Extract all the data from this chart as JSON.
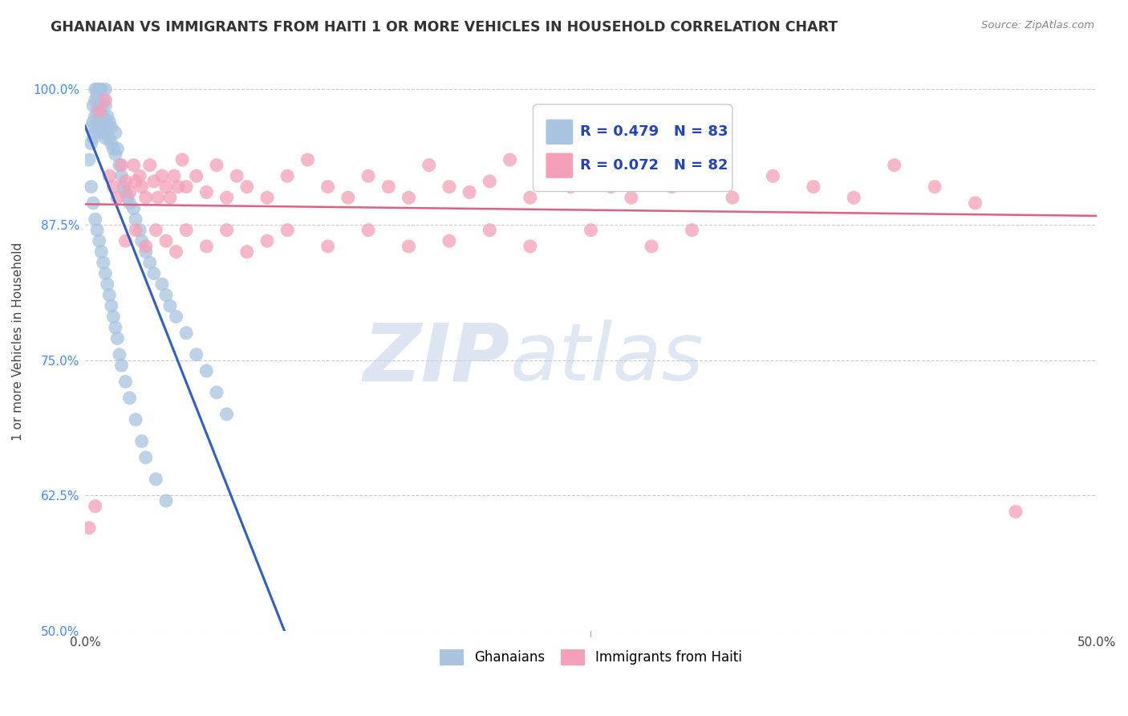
{
  "title": "GHANAIAN VS IMMIGRANTS FROM HAITI 1 OR MORE VEHICLES IN HOUSEHOLD CORRELATION CHART",
  "source": "Source: ZipAtlas.com",
  "ylabel": "1 or more Vehicles in Household",
  "xlim": [
    0.0,
    0.5
  ],
  "ylim": [
    0.5,
    1.035
  ],
  "xticks": [
    0.0,
    0.1,
    0.2,
    0.3,
    0.4,
    0.5
  ],
  "xticklabels": [
    "0.0%",
    "",
    "",
    "",
    "",
    "50.0%"
  ],
  "yticks": [
    0.5,
    0.625,
    0.75,
    0.875,
    1.0
  ],
  "yticklabels": [
    "50.0%",
    "62.5%",
    "75.0%",
    "87.5%",
    "100.0%"
  ],
  "legend_labels": [
    "Ghanaians",
    "Immigrants from Haiti"
  ],
  "R_blue": 0.479,
  "N_blue": 83,
  "R_pink": 0.072,
  "N_pink": 82,
  "color_blue": "#a8c4e0",
  "color_pink": "#f4a0b8",
  "line_blue": "#3060c0",
  "line_pink": "#e06080",
  "watermark_zip": "ZIP",
  "watermark_atlas": "atlas",
  "background_color": "#ffffff",
  "grid_color": "#c8c8c8",
  "blue_x": [
    0.002,
    0.003,
    0.003,
    0.004,
    0.004,
    0.004,
    0.005,
    0.005,
    0.005,
    0.005,
    0.006,
    0.006,
    0.006,
    0.006,
    0.007,
    0.007,
    0.007,
    0.008,
    0.008,
    0.008,
    0.008,
    0.009,
    0.009,
    0.009,
    0.01,
    0.01,
    0.01,
    0.01,
    0.011,
    0.011,
    0.012,
    0.012,
    0.013,
    0.013,
    0.014,
    0.015,
    0.015,
    0.016,
    0.017,
    0.018,
    0.019,
    0.02,
    0.021,
    0.022,
    0.024,
    0.025,
    0.027,
    0.028,
    0.03,
    0.032,
    0.034,
    0.038,
    0.04,
    0.042,
    0.045,
    0.05,
    0.055,
    0.06,
    0.065,
    0.07,
    0.003,
    0.004,
    0.005,
    0.006,
    0.007,
    0.008,
    0.009,
    0.01,
    0.011,
    0.012,
    0.013,
    0.014,
    0.015,
    0.016,
    0.017,
    0.018,
    0.02,
    0.022,
    0.025,
    0.028,
    0.03,
    0.035,
    0.04
  ],
  "blue_y": [
    0.935,
    0.95,
    0.965,
    0.955,
    0.97,
    0.985,
    0.96,
    0.975,
    0.99,
    1.0,
    0.965,
    0.98,
    0.995,
    1.0,
    0.97,
    0.985,
    1.0,
    0.965,
    0.975,
    0.985,
    1.0,
    0.96,
    0.975,
    0.99,
    0.955,
    0.97,
    0.985,
    1.0,
    0.965,
    0.975,
    0.955,
    0.97,
    0.95,
    0.965,
    0.945,
    0.94,
    0.96,
    0.945,
    0.93,
    0.92,
    0.91,
    0.905,
    0.9,
    0.895,
    0.89,
    0.88,
    0.87,
    0.86,
    0.85,
    0.84,
    0.83,
    0.82,
    0.81,
    0.8,
    0.79,
    0.775,
    0.755,
    0.74,
    0.72,
    0.7,
    0.91,
    0.895,
    0.88,
    0.87,
    0.86,
    0.85,
    0.84,
    0.83,
    0.82,
    0.81,
    0.8,
    0.79,
    0.78,
    0.77,
    0.755,
    0.745,
    0.73,
    0.715,
    0.695,
    0.675,
    0.66,
    0.64,
    0.62
  ],
  "pink_x": [
    0.002,
    0.005,
    0.007,
    0.01,
    0.012,
    0.014,
    0.016,
    0.018,
    0.02,
    0.022,
    0.024,
    0.025,
    0.027,
    0.028,
    0.03,
    0.032,
    0.034,
    0.036,
    0.038,
    0.04,
    0.042,
    0.044,
    0.046,
    0.048,
    0.05,
    0.055,
    0.06,
    0.065,
    0.07,
    0.075,
    0.08,
    0.09,
    0.1,
    0.11,
    0.12,
    0.13,
    0.14,
    0.15,
    0.16,
    0.17,
    0.18,
    0.19,
    0.2,
    0.21,
    0.22,
    0.23,
    0.24,
    0.25,
    0.26,
    0.27,
    0.28,
    0.29,
    0.3,
    0.32,
    0.34,
    0.36,
    0.38,
    0.4,
    0.42,
    0.44,
    0.02,
    0.025,
    0.03,
    0.035,
    0.04,
    0.045,
    0.05,
    0.06,
    0.07,
    0.08,
    0.09,
    0.1,
    0.12,
    0.14,
    0.16,
    0.18,
    0.2,
    0.22,
    0.25,
    0.28,
    0.3,
    0.46
  ],
  "pink_y": [
    0.595,
    0.615,
    0.98,
    0.99,
    0.92,
    0.91,
    0.9,
    0.93,
    0.915,
    0.905,
    0.93,
    0.915,
    0.92,
    0.91,
    0.9,
    0.93,
    0.915,
    0.9,
    0.92,
    0.91,
    0.9,
    0.92,
    0.91,
    0.935,
    0.91,
    0.92,
    0.905,
    0.93,
    0.9,
    0.92,
    0.91,
    0.9,
    0.92,
    0.935,
    0.91,
    0.9,
    0.92,
    0.91,
    0.9,
    0.93,
    0.91,
    0.905,
    0.915,
    0.935,
    0.9,
    0.92,
    0.91,
    0.93,
    0.91,
    0.9,
    0.92,
    0.91,
    0.93,
    0.9,
    0.92,
    0.91,
    0.9,
    0.93,
    0.91,
    0.895,
    0.86,
    0.87,
    0.855,
    0.87,
    0.86,
    0.85,
    0.87,
    0.855,
    0.87,
    0.85,
    0.86,
    0.87,
    0.855,
    0.87,
    0.855,
    0.86,
    0.87,
    0.855,
    0.87,
    0.855,
    0.87,
    0.61
  ]
}
